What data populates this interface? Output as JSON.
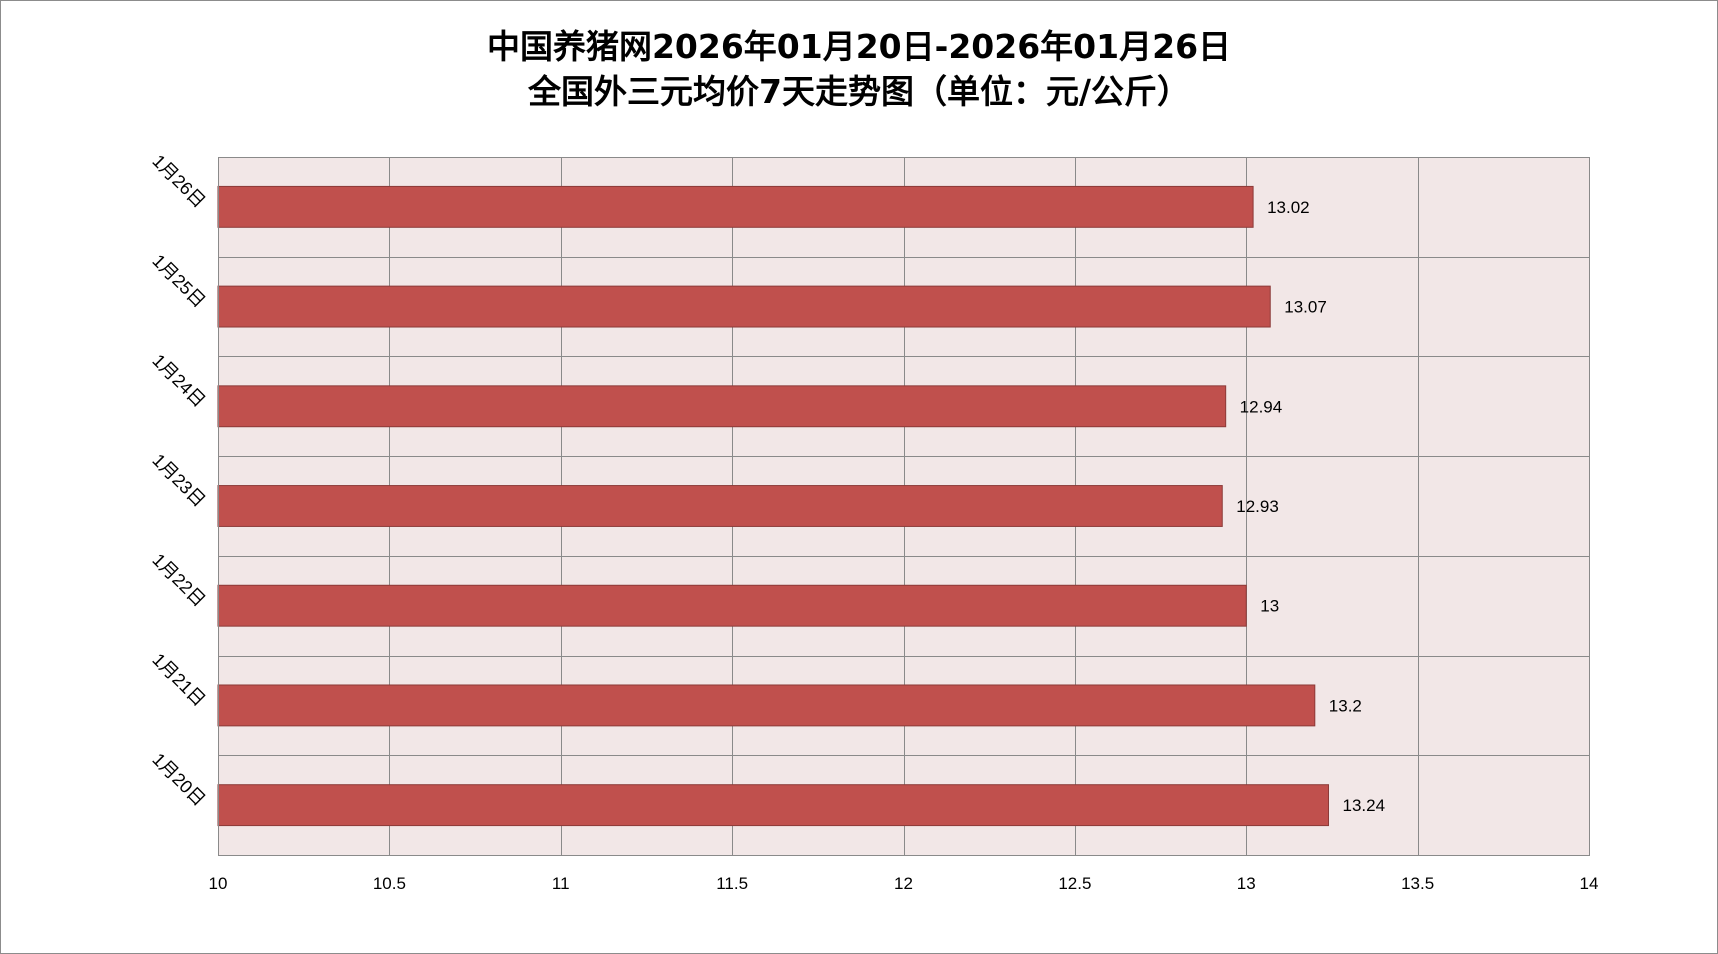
{
  "chart_data": {
    "type": "bar",
    "orientation": "horizontal",
    "title": [
      "中国养猪网2026年01月20日-2026年01月26日",
      "全国外三元均价7天走势图（单位：元/公斤）"
    ],
    "xlabel": "",
    "ylabel": "",
    "categories": [
      "1月20日",
      "1月21日",
      "1月22日",
      "1月23日",
      "1月24日",
      "1月25日",
      "1月26日"
    ],
    "values": [
      13.24,
      13.2,
      13,
      12.93,
      12.94,
      13.07,
      13.02
    ],
    "show_data_labels": true,
    "xlim": [
      10,
      14
    ],
    "x_ticks": [
      10,
      10.5,
      11,
      11.5,
      12,
      12.5,
      13,
      13.5,
      14
    ],
    "grid": true,
    "legend": "none",
    "colors": {
      "bar": "#C0504D",
      "bar_edge": "#8C3A38",
      "plot_background": "#F2E7E7",
      "grid": "#8A8A8A"
    }
  }
}
